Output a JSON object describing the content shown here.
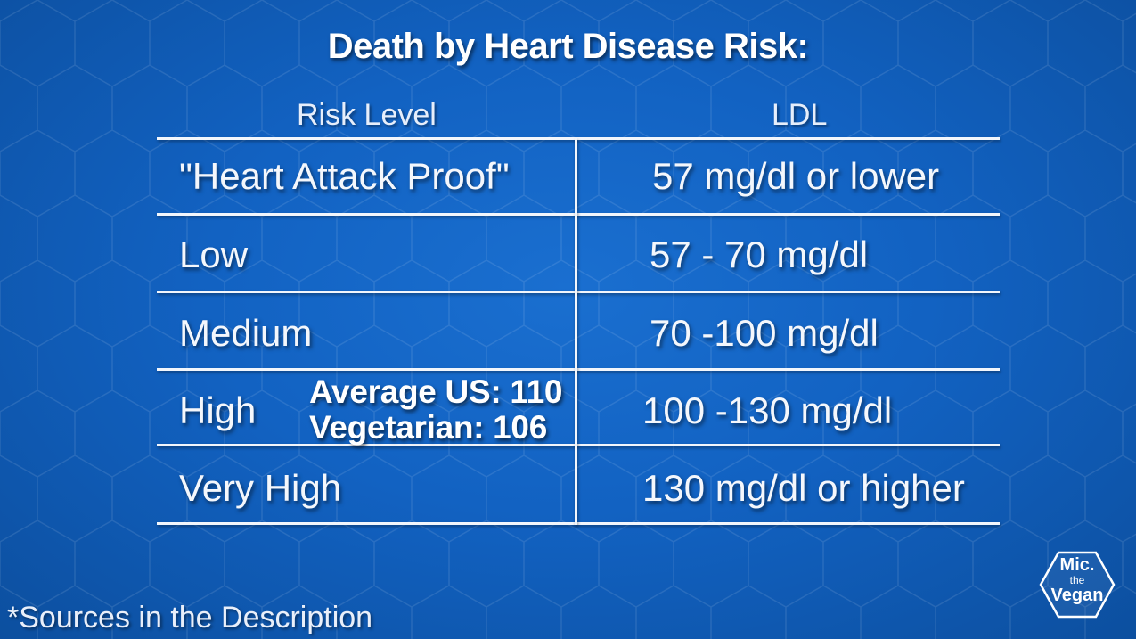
{
  "title": "Death by Heart Disease Risk:",
  "table": {
    "headers": [
      "Risk Level",
      "LDL"
    ],
    "rows": [
      {
        "level": "\"Heart Attack Proof\"",
        "ldl": "57 mg/dl or lower"
      },
      {
        "level": "Low",
        "ldl": "57 - 70 mg/dl"
      },
      {
        "level": "Medium",
        "ldl": "70 -100 mg/dl"
      },
      {
        "level": "High",
        "ldl": "100 -130 mg/dl"
      },
      {
        "level": "Very High",
        "ldl": "130 mg/dl or higher"
      }
    ]
  },
  "callout": {
    "line1": "Average US: 110",
    "line2": "Vegetarian: 106"
  },
  "footnote": "*Sources in the Description",
  "logo": {
    "line1": "Mic.",
    "line2": "the",
    "line3": "Vegan"
  },
  "colors": {
    "background": "#1262c2",
    "text": "#ffffff"
  }
}
